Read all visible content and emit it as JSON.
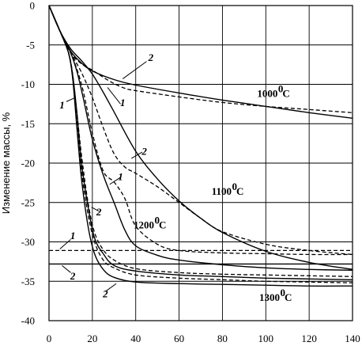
{
  "chart_data": {
    "type": "line",
    "title": "",
    "xlabel": "",
    "ylabel": "Изменение массы, %",
    "xlim": [
      0,
      140
    ],
    "ylim": [
      -40,
      0
    ],
    "xticks": [
      "0",
      "20",
      "40",
      "60",
      "80",
      "100",
      "120",
      "140"
    ],
    "yticks": [
      "0",
      "-5",
      "-10",
      "-15",
      "-20",
      "-25",
      "-30",
      "-35",
      "-40"
    ],
    "grid": true,
    "legend": "none",
    "temperature_labels": [
      {
        "text": "1000",
        "unit": "C",
        "deg": "0",
        "x": 96,
        "y": -11.6
      },
      {
        "text": "1100",
        "unit": "C",
        "deg": "0",
        "x": 75,
        "y": -24.0
      },
      {
        "text": "1200",
        "unit": "C",
        "deg": "0",
        "x": 39,
        "y": -28.3
      },
      {
        "text": "1300",
        "unit": "C",
        "deg": "0",
        "x": 97,
        "y": -37.5
      }
    ],
    "curve_labels": [
      {
        "text": "2",
        "x": 47,
        "y": -6.6,
        "lx1": 45,
        "ly1": -7.1,
        "lx2": 34,
        "ly2": -9.3
      },
      {
        "text": "1",
        "x": 34,
        "y": -12.3,
        "lx1": 33,
        "ly1": -12.5,
        "lx2": 27,
        "ly2": -10.4
      },
      {
        "text": "1",
        "x": 6,
        "y": -12.6,
        "lx1": 8,
        "ly1": -12.2,
        "lx2": 12,
        "ly2": -11.7
      },
      {
        "text": "2",
        "x": 44,
        "y": -18.5,
        "lx1": 43,
        "ly1": -18.6,
        "lx2": 38,
        "ly2": -19.4
      },
      {
        "text": "1",
        "x": 33,
        "y": -21.7,
        "lx1": 33,
        "ly1": -21.8,
        "lx2": 28,
        "ly2": -22.7
      },
      {
        "text": "2",
        "x": 23,
        "y": -26.2,
        "lx1": 23,
        "ly1": -26.1,
        "lx2": 19.6,
        "ly2": -25.6
      },
      {
        "text": "1",
        "x": 11,
        "y": -29.2,
        "lx1": 10,
        "ly1": -29.7,
        "lx2": 5,
        "ly2": -30.9
      },
      {
        "text": "2",
        "x": 11,
        "y": -34.3,
        "lx1": 10,
        "ly1": -33.9,
        "lx2": 6,
        "ly2": -33.0
      },
      {
        "text": "2",
        "x": 26,
        "y": -36.6,
        "lx1": 26,
        "ly1": -36.3,
        "lx2": 31,
        "ly2": -35.3
      }
    ],
    "series": [
      {
        "style": "solid",
        "x": [
          0,
          5,
          10,
          15,
          20,
          30,
          40,
          60,
          80,
          100,
          120,
          140
        ],
        "y": [
          0,
          -3.2,
          -5.8,
          -7.3,
          -8.3,
          -9.4,
          -10.1,
          -11.1,
          -12.0,
          -12.8,
          -13.6,
          -14.3
        ]
      },
      {
        "style": "dashed",
        "x": [
          0,
          5,
          10,
          15,
          20,
          25,
          30,
          35,
          40,
          60,
          80,
          100,
          120,
          140
        ],
        "y": [
          0,
          -3.2,
          -6,
          -7.4,
          -8.2,
          -9.1,
          -9.9,
          -10.5,
          -10.8,
          -11.6,
          -12.3,
          -12.8,
          -13.2,
          -13.6
        ]
      },
      {
        "style": "solid",
        "x": [
          0,
          5,
          10,
          15,
          20,
          25,
          30,
          40,
          50,
          60,
          70,
          80,
          100,
          120,
          140
        ],
        "y": [
          0,
          -3.2,
          -5.5,
          -7,
          -8.7,
          -11,
          -13.5,
          -18.5,
          -22,
          -24.8,
          -27,
          -28.8,
          -31.2,
          -32.6,
          -33.5
        ]
      },
      {
        "style": "dashed",
        "x": [
          0,
          5,
          10,
          15,
          20,
          25,
          30,
          35,
          40,
          50,
          60,
          70,
          80,
          100,
          120,
          140
        ],
        "y": [
          0,
          -3.2,
          -6,
          -8.5,
          -11.7,
          -15.5,
          -18.8,
          -20.5,
          -21.3,
          -23,
          -25,
          -27,
          -28.7,
          -30.3,
          -31.1,
          -31.6
        ]
      },
      {
        "style": "solid",
        "x": [
          0,
          5,
          10,
          13,
          16,
          20,
          25,
          30,
          35,
          40,
          50,
          60,
          80,
          100,
          120,
          140
        ],
        "y": [
          0,
          -3.2,
          -6,
          -8.5,
          -12,
          -17,
          -21.5,
          -25,
          -28.5,
          -30.5,
          -31.7,
          -32.3,
          -32.9,
          -33.3,
          -33.5,
          -33.6
        ]
      },
      {
        "style": "dashed",
        "x": [
          0,
          5,
          10,
          15,
          20,
          25,
          30,
          35,
          40,
          50,
          60,
          80,
          100,
          120,
          140
        ],
        "y": [
          0,
          -3.2,
          -6,
          -10,
          -16.2,
          -21,
          -22.4,
          -24.5,
          -28,
          -30.3,
          -31.1,
          -31.4,
          -31.5,
          -31.6,
          -31.6
        ]
      },
      {
        "style": "solid",
        "x": [
          0,
          5,
          9,
          11,
          13,
          15,
          18,
          21,
          25,
          30,
          40,
          60,
          80,
          100,
          120,
          140
        ],
        "y": [
          0,
          -3.2,
          -6,
          -9,
          -14,
          -20,
          -25.5,
          -29.5,
          -31.5,
          -33,
          -33.7,
          -34.2,
          -34.4,
          -34.6,
          -34.7,
          -34.8
        ]
      },
      {
        "style": "dashed",
        "x": [
          0,
          5,
          9,
          11,
          13,
          15,
          18,
          21,
          25,
          30,
          40,
          60,
          80,
          100,
          120,
          140
        ],
        "y": [
          0,
          -3.2,
          -6,
          -9,
          -14,
          -19,
          -25,
          -28.8,
          -31,
          -32.3,
          -33.4,
          -33.9,
          -34.1,
          -34.2,
          -34.3,
          -34.4
        ]
      },
      {
        "style": "solid",
        "x": [
          0,
          5,
          9,
          11,
          13,
          15,
          18,
          21,
          25,
          30,
          40,
          60,
          80,
          100,
          120,
          140
        ],
        "y": [
          0,
          -3.2,
          -6,
          -9.5,
          -16,
          -22,
          -28,
          -31.5,
          -33.5,
          -34.5,
          -35.1,
          -35.3,
          -35.4,
          -35.5,
          -35.6,
          -35.6
        ]
      },
      {
        "style": "dashed",
        "x": [
          0,
          5,
          9,
          11,
          13,
          15,
          18,
          21,
          25,
          30,
          40,
          60,
          80,
          100,
          120,
          140
        ],
        "y": [
          0,
          -3.2,
          -6,
          -9,
          -15,
          -21,
          -26.5,
          -30,
          -32.3,
          -33.3,
          -34.2,
          -34.6,
          -34.8,
          -35,
          -35.1,
          -35.2
        ]
      },
      {
        "style": "dashed",
        "x": [
          0,
          140
        ],
        "y": [
          -31.1,
          -31.1
        ]
      },
      {
        "style": "solid",
        "x": [
          0,
          140
        ],
        "y": [
          -32.8,
          -32.8
        ]
      }
    ]
  }
}
